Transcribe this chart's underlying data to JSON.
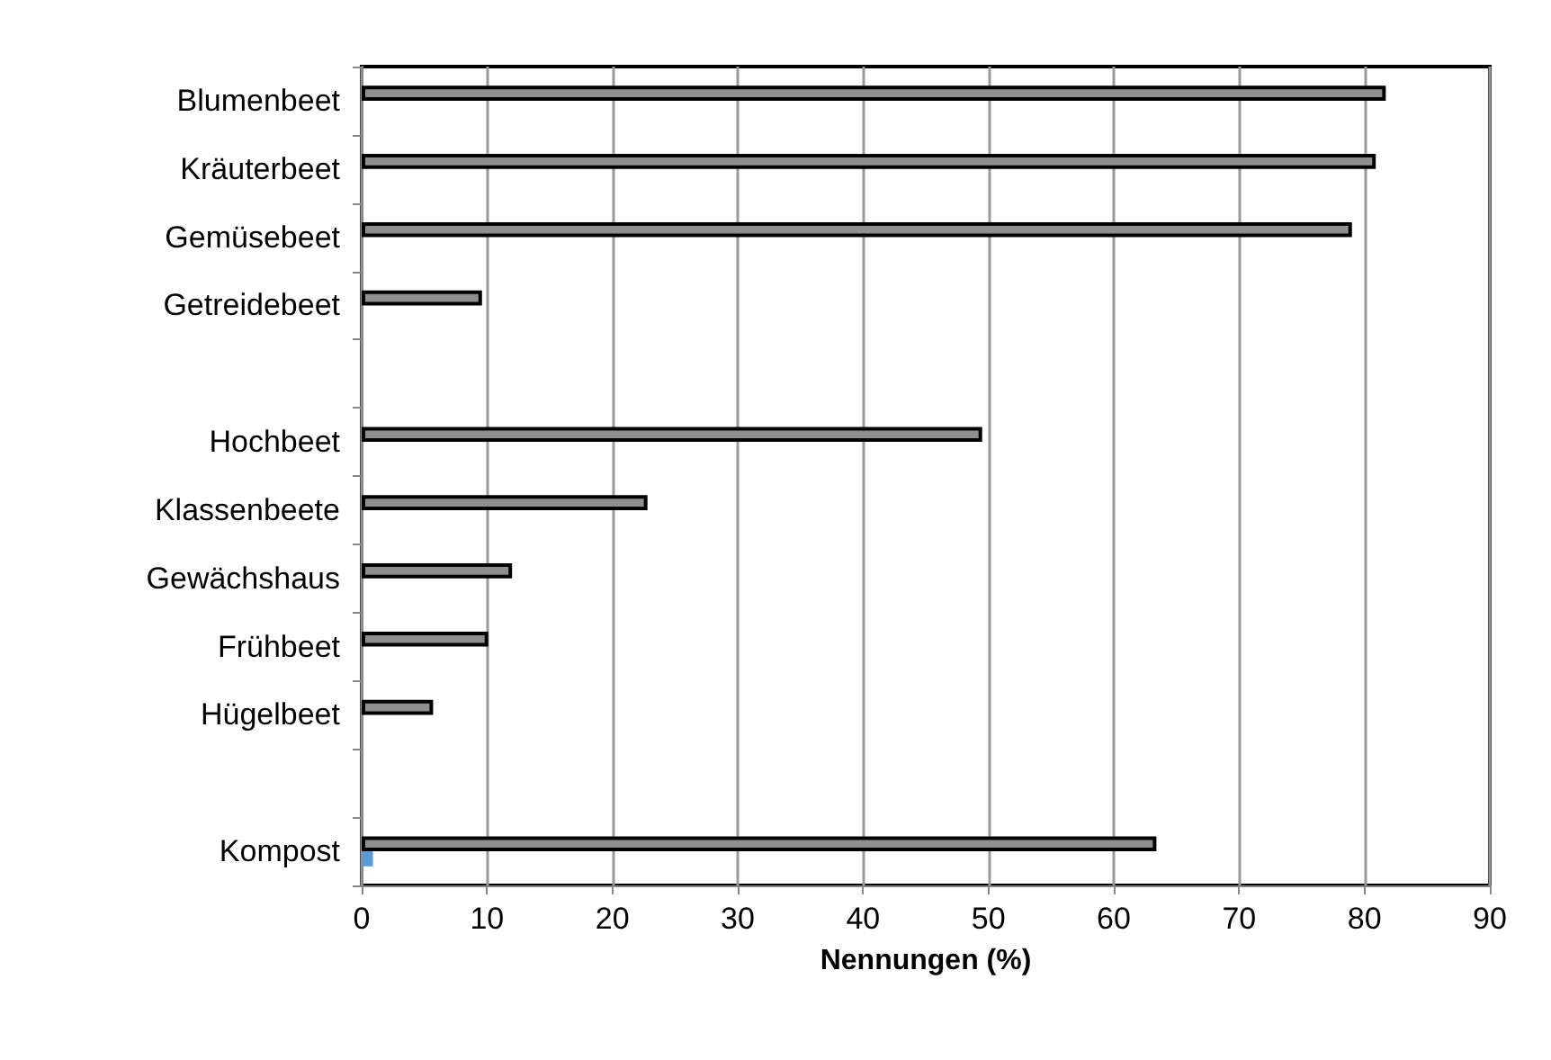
{
  "chart_data": {
    "type": "bar",
    "orientation": "horizontal",
    "xlabel": "Nennungen (%)",
    "categories": [
      "Blumenbeet",
      "Kräuterbeet",
      "Gemüsebeet",
      "Getreidebeet",
      null,
      "Hochbeet",
      "Klassenbeete",
      "Gewächshaus",
      "Frühbeet",
      "Hügelbeet",
      null,
      "Kompost"
    ],
    "series": [
      {
        "color": "#8f8f8f",
        "values": [
          81.7,
          80.9,
          79.0,
          9.6,
          null,
          49.5,
          22.8,
          12.0,
          10.1,
          5.7,
          null,
          63.4
        ]
      },
      {
        "color": "#5b9bd5",
        "values": [
          null,
          null,
          null,
          null,
          null,
          null,
          null,
          null,
          null,
          null,
          null,
          0.9
        ]
      }
    ],
    "xlim": [
      0,
      90
    ],
    "xticks": [
      0,
      10,
      20,
      30,
      40,
      50,
      60,
      70,
      80,
      90
    ],
    "grid": "x"
  }
}
